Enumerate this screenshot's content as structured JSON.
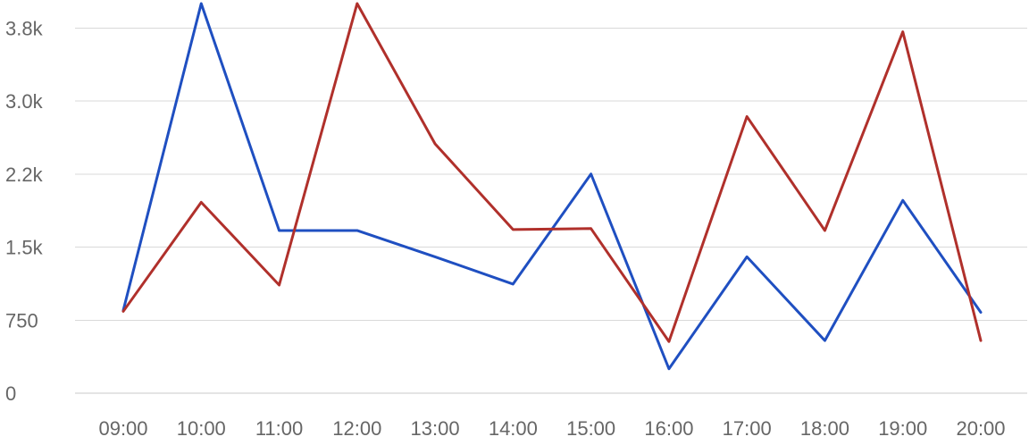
{
  "chart_data": {
    "type": "line",
    "title": "",
    "xlabel": "",
    "ylabel": "",
    "categories": [
      "09:00",
      "10:00",
      "11:00",
      "12:00",
      "13:00",
      "14:00",
      "15:00",
      "16:00",
      "17:00",
      "18:00",
      "19:00",
      "20:00"
    ],
    "y_ticks": [
      {
        "value": 0,
        "label": "0"
      },
      {
        "value": 750,
        "label": "750"
      },
      {
        "value": 1500,
        "label": "1.5k"
      },
      {
        "value": 2250,
        "label": "2.2k"
      },
      {
        "value": 3000,
        "label": "3.0k"
      },
      {
        "value": 3750,
        "label": "3.8k"
      }
    ],
    "ylim": [
      0,
      4000
    ],
    "grid": true,
    "legend": "none",
    "series": [
      {
        "color": "#1f4fc1",
        "values": [
          850,
          4000,
          1670,
          1670,
          1400,
          1120,
          2250,
          250,
          1400,
          540,
          1980,
          830
        ]
      },
      {
        "color": "#b0302b",
        "values": [
          840,
          1960,
          1110,
          4000,
          2560,
          1680,
          1690,
          530,
          2840,
          1670,
          3710,
          540
        ]
      }
    ]
  }
}
